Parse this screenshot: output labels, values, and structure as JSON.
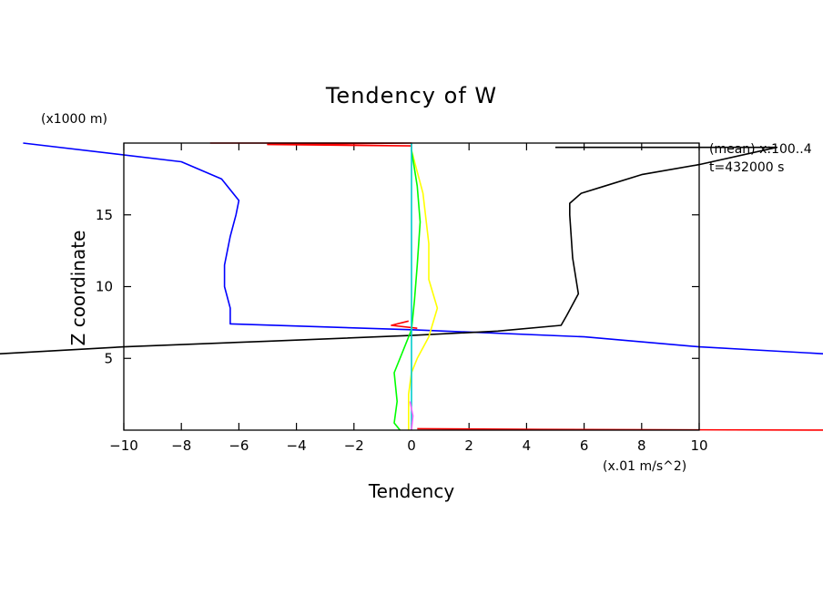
{
  "chart_data": {
    "type": "line",
    "title": "Tendency of W",
    "xlabel": "Tendency",
    "ylabel": "Z coordinate",
    "x_unit": "(x.01 m/s^2)",
    "y_unit": "(x1000 m)",
    "annotation_line1": "(mean) x:100..4",
    "annotation_line2": "t=432000 s",
    "xlim": [
      -10,
      10
    ],
    "ylim": [
      0,
      20
    ],
    "xticks": [
      -10,
      -8,
      -6,
      -4,
      -2,
      0,
      2,
      4,
      6,
      8,
      10
    ],
    "xtick_labels": [
      "−10",
      "−8",
      "−6",
      "−4",
      "−2",
      "0",
      "2",
      "4",
      "6",
      "8",
      "10"
    ],
    "yticks": [
      5,
      10,
      15
    ],
    "ytick_labels": [
      "5",
      "10",
      "15"
    ],
    "series": [
      {
        "name": "blue",
        "color": "#0000ff",
        "points": [
          [
            -13.5,
            20.0
          ],
          [
            -8.0,
            18.7
          ],
          [
            -6.6,
            17.5
          ],
          [
            -6.0,
            16.0
          ],
          [
            -6.1,
            15.0
          ],
          [
            -6.3,
            13.5
          ],
          [
            -6.5,
            11.5
          ],
          [
            -6.5,
            10.0
          ],
          [
            -6.3,
            8.5
          ],
          [
            -6.3,
            7.4
          ],
          [
            0,
            7.0
          ],
          [
            6.0,
            6.5
          ],
          [
            10.0,
            5.8
          ],
          [
            14.5,
            5.3
          ]
        ]
      },
      {
        "name": "black",
        "color": "#000000",
        "points": [
          [
            -14.5,
            5.3
          ],
          [
            -10.0,
            5.8
          ],
          [
            -5.0,
            6.2
          ],
          [
            0,
            6.6
          ],
          [
            3.0,
            6.9
          ],
          [
            5.2,
            7.3
          ],
          [
            5.4,
            8.0
          ],
          [
            5.8,
            9.5
          ],
          [
            5.6,
            12.0
          ],
          [
            5.5,
            15.0
          ],
          [
            5.5,
            15.8
          ],
          [
            5.9,
            16.5
          ],
          [
            6.7,
            17.0
          ],
          [
            8.0,
            17.8
          ],
          [
            10.0,
            18.5
          ],
          [
            12.7,
            19.7
          ],
          [
            10.0,
            19.7
          ],
          [
            5.0,
            19.7
          ]
        ]
      },
      {
        "name": "red",
        "color": "#ff0000",
        "points": [
          [
            -7.0,
            20.0
          ],
          [
            0,
            20.0
          ],
          [
            -5.0,
            19.9
          ],
          [
            0,
            19.8
          ]
        ]
      },
      {
        "name": "red-mid",
        "color": "#ff0000",
        "points": [
          [
            -0.1,
            7.6
          ],
          [
            -0.7,
            7.3
          ],
          [
            0.2,
            7.1
          ]
        ]
      },
      {
        "name": "red-bottom",
        "color": "#ff0000",
        "points": [
          [
            0.2,
            0.1
          ],
          [
            4.5,
            0.05
          ],
          [
            14.5,
            0.0
          ]
        ]
      },
      {
        "name": "yellow",
        "color": "#ffff00",
        "points": [
          [
            0.0,
            19.5
          ],
          [
            0.4,
            16.5
          ],
          [
            0.6,
            13.0
          ],
          [
            0.6,
            10.5
          ],
          [
            0.9,
            8.5
          ],
          [
            0.6,
            6.5
          ],
          [
            0.2,
            5.0
          ],
          [
            0.0,
            4.0
          ],
          [
            -0.1,
            2.5
          ],
          [
            -0.1,
            0.5
          ],
          [
            -0.1,
            0.0
          ]
        ]
      },
      {
        "name": "green",
        "color": "#00ff00",
        "points": [
          [
            0.0,
            19.5
          ],
          [
            0.2,
            17.0
          ],
          [
            0.3,
            14.5
          ],
          [
            0.2,
            11.5
          ],
          [
            0.1,
            9.0
          ],
          [
            0.0,
            7.0
          ],
          [
            -0.3,
            5.5
          ],
          [
            -0.6,
            4.0
          ],
          [
            -0.5,
            2.0
          ],
          [
            -0.6,
            0.5
          ],
          [
            -0.4,
            0.0
          ]
        ]
      },
      {
        "name": "cyan",
        "color": "#00cccc",
        "points": [
          [
            0.0,
            20.0
          ],
          [
            0.0,
            0.0
          ]
        ]
      },
      {
        "name": "pink",
        "color": "#ff66ff",
        "points": [
          [
            -0.05,
            2.0
          ],
          [
            0.05,
            1.0
          ],
          [
            0.0,
            0.0
          ]
        ]
      }
    ]
  }
}
